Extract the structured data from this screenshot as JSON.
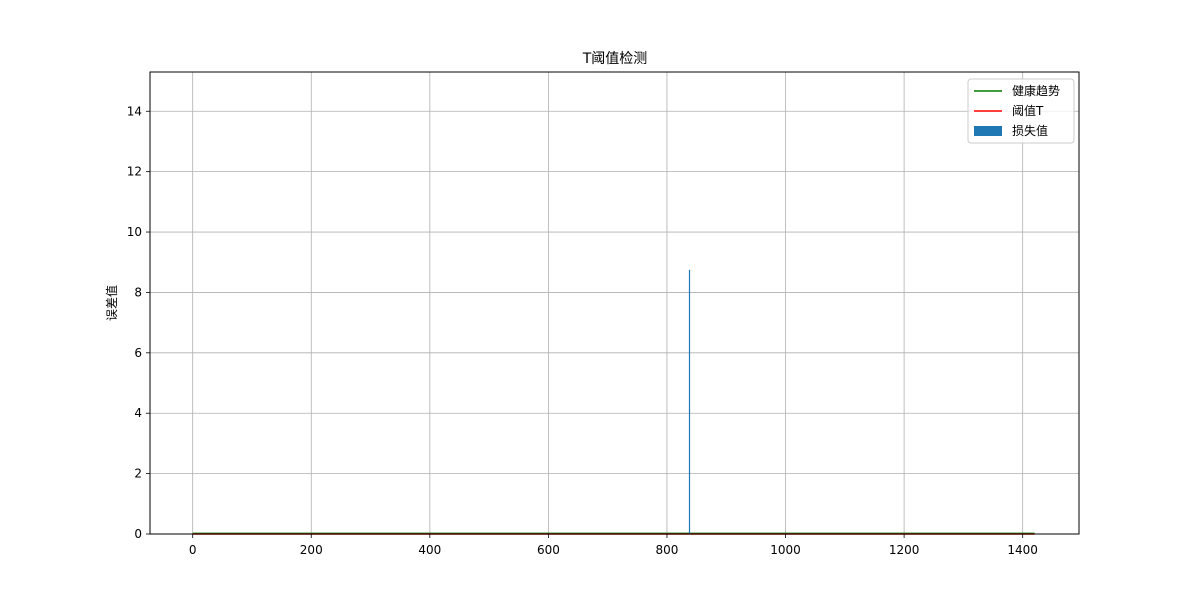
{
  "chart_data": {
    "type": "bar",
    "title": "T阈值检测",
    "xlabel": "",
    "ylabel": "误差值",
    "xlim": [
      -72,
      1495
    ],
    "ylim": [
      0,
      15.3
    ],
    "xticks": [
      0,
      200,
      400,
      600,
      800,
      1000,
      1200,
      1400
    ],
    "yticks": [
      0,
      2,
      4,
      6,
      8,
      10,
      12,
      14
    ],
    "grid": true,
    "legend_position": "top-right",
    "series": [
      {
        "name": "健康趋势",
        "kind": "line",
        "color": "#008000",
        "x": [
          0,
          1420
        ],
        "y": [
          0.02,
          0.02
        ]
      },
      {
        "name": "阈值T",
        "kind": "line",
        "color": "#ff0000",
        "x": [
          0,
          1420
        ],
        "y": [
          0.0,
          0.0
        ]
      },
      {
        "name": "损失值",
        "kind": "bar",
        "color": "#1f77b4",
        "x": [
          838
        ],
        "y": [
          8.75
        ]
      }
    ]
  }
}
